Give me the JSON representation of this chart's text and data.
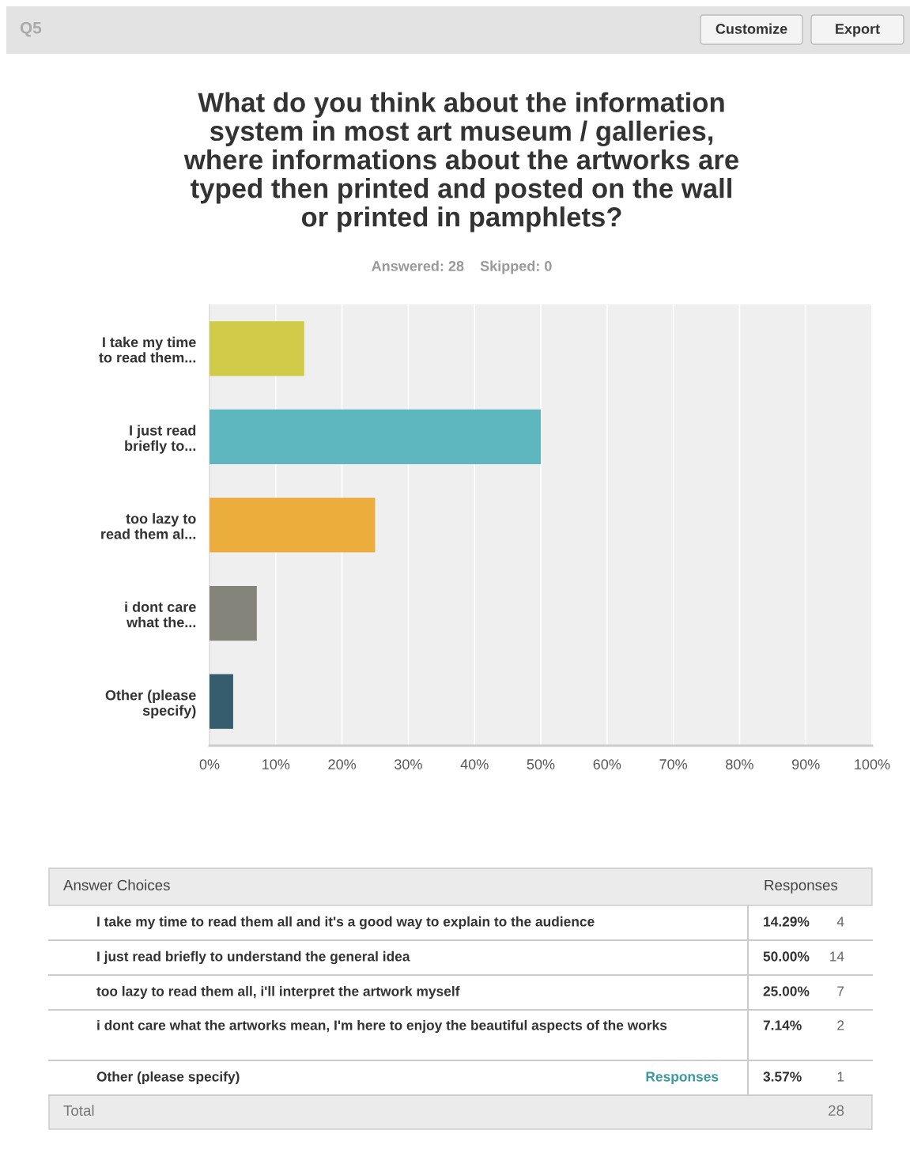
{
  "chart_data": {
    "type": "bar",
    "orientation": "horizontal",
    "title": "What do you think about the information\nsystem in most art museum / galleries,\nwhere informations about the artworks are\ntyped then printed and posted on the wall\nor printed in pamphlets?",
    "subtitle": "Answered: 28    Skipped: 0",
    "categories": [
      "I take my time\nto read them...",
      "I just read\nbriefly to...",
      "too lazy to\nread them al...",
      "i dont care\nwhat the...",
      "Other (please\nspecify)"
    ],
    "values": [
      14.29,
      50.0,
      25.0,
      7.14,
      3.57
    ],
    "colors": [
      "#d0cb48",
      "#5eb7bf",
      "#ebae3d",
      "#85847a",
      "#365d6e"
    ],
    "xlim": [
      0,
      100
    ],
    "xticks": [
      {
        "value": 0,
        "label": "0%"
      },
      {
        "value": 10,
        "label": "10%"
      },
      {
        "value": 20,
        "label": "20%"
      },
      {
        "value": 30,
        "label": "30%"
      },
      {
        "value": 40,
        "label": "40%"
      },
      {
        "value": 50,
        "label": "50%"
      },
      {
        "value": 60,
        "label": "60%"
      },
      {
        "value": 70,
        "label": "70%"
      },
      {
        "value": 80,
        "label": "80%"
      },
      {
        "value": 90,
        "label": "90%"
      },
      {
        "value": 100,
        "label": "100%"
      }
    ],
    "grid": "x",
    "annotations": [
      "Q5",
      "Customize",
      "Export",
      "Answer Choices",
      "Responses",
      "I take my time to read them all and it's a good way to explain to the audience",
      "I just read briefly to understand the general idea",
      "too lazy to read them all, i'll interpret the artwork myself",
      "i dont care what the artworks mean, I'm here to enjoy the beautiful aspects of the works",
      "Other (please specify)",
      "4",
      "14",
      "7",
      "2",
      "1",
      "Responses",
      "Total",
      "28",
      "14.29%",
      "50.00%",
      "25.00%",
      "7.14%",
      "3.57%"
    ]
  }
}
